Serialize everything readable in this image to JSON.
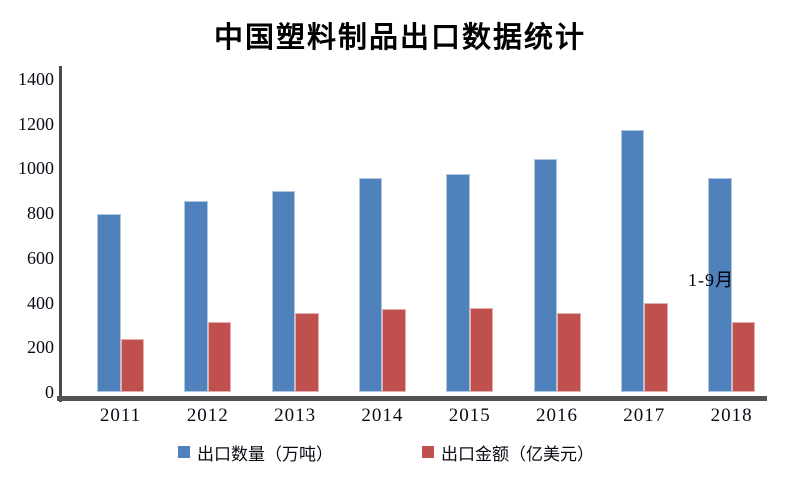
{
  "title": "中国塑料制品出口数据统计",
  "colors": {
    "series_blue": "#4F81BD",
    "series_red": "#C0504D",
    "axis_line": "#535353",
    "text": "#000000"
  },
  "legend": [
    {
      "label": "出口数量（万吨）",
      "color_key": "series_blue"
    },
    {
      "label": "出口金额（亿美元）",
      "color_key": "series_red"
    }
  ],
  "chart_data": {
    "type": "bar",
    "title": "中国塑料制品出口数据统计",
    "categories": [
      "2011",
      "2012",
      "2013",
      "2014",
      "2015",
      "2016",
      "2017",
      "2018"
    ],
    "series": [
      {
        "name": "出口数量（万吨）",
        "color": "#4F81BD",
        "values": [
          795,
          855,
          900,
          955,
          975,
          1040,
          1170,
          955
        ]
      },
      {
        "name": "出口金额（亿美元）",
        "color": "#C0504D",
        "values": [
          235,
          315,
          355,
          370,
          375,
          355,
          400,
          315
        ]
      }
    ],
    "xlabel": "",
    "ylabel": "",
    "ylim": [
      0,
      1400
    ],
    "yticks": [
      0,
      200,
      400,
      600,
      800,
      1000,
      1200,
      1400
    ],
    "grid": false,
    "legend_position": "bottom",
    "annotation": {
      "text": "1-9月",
      "category": "2018"
    }
  }
}
